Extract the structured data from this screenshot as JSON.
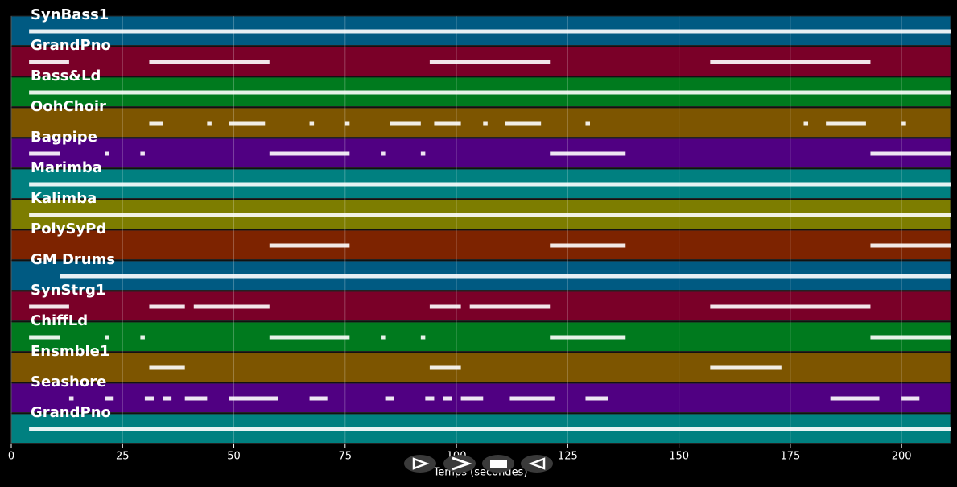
{
  "chart_data": {
    "type": "timeline",
    "xlabel": "Temps (secondes)",
    "xlim": [
      0,
      211
    ],
    "xticks": [
      0,
      25,
      50,
      75,
      100,
      125,
      150,
      175,
      200
    ],
    "grid": true,
    "series": [
      {
        "name": "SynBass1",
        "color": "#005a82",
        "segments": [
          [
            4,
            211
          ]
        ]
      },
      {
        "name": "GrandPno",
        "color": "#7a0028",
        "segments": [
          [
            4,
            13
          ],
          [
            31,
            58
          ],
          [
            94,
            121
          ],
          [
            157,
            193
          ]
        ]
      },
      {
        "name": "Bass&Ld",
        "color": "#007a1e",
        "segments": [
          [
            4,
            211
          ]
        ]
      },
      {
        "name": "OohChoir",
        "color": "#7d5500",
        "segments": [
          [
            31,
            34
          ],
          [
            44,
            45
          ],
          [
            49,
            57
          ],
          [
            67,
            68
          ],
          [
            75,
            76
          ],
          [
            85,
            92
          ],
          [
            95,
            101
          ],
          [
            106,
            107
          ],
          [
            111,
            119
          ],
          [
            129,
            130
          ],
          [
            178,
            179
          ],
          [
            183,
            192
          ],
          [
            200,
            201
          ]
        ]
      },
      {
        "name": "Bagpipe",
        "color": "#500082",
        "segments": [
          [
            4,
            11
          ],
          [
            21,
            22
          ],
          [
            29,
            30
          ],
          [
            58,
            76
          ],
          [
            83,
            84
          ],
          [
            92,
            93
          ],
          [
            121,
            138
          ],
          [
            193,
            211
          ]
        ]
      },
      {
        "name": "Marimba",
        "color": "#008080",
        "segments": [
          [
            4,
            211
          ]
        ]
      },
      {
        "name": "Kalimba",
        "color": "#7d7d00",
        "segments": [
          [
            4,
            211
          ]
        ]
      },
      {
        "name": "PolySyPd",
        "color": "#7d2300",
        "segments": [
          [
            58,
            76
          ],
          [
            121,
            138
          ],
          [
            193,
            211
          ]
        ]
      },
      {
        "name": "GM Drums",
        "color": "#005a82",
        "segments": [
          [
            11,
            211
          ]
        ]
      },
      {
        "name": "SynStrg1",
        "color": "#7a0028",
        "segments": [
          [
            4,
            13
          ],
          [
            31,
            39
          ],
          [
            41,
            58
          ],
          [
            94,
            101
          ],
          [
            103,
            121
          ],
          [
            157,
            175
          ],
          [
            175,
            193
          ]
        ]
      },
      {
        "name": "ChiffLd",
        "color": "#007a1e",
        "segments": [
          [
            4,
            11
          ],
          [
            21,
            22
          ],
          [
            29,
            30
          ],
          [
            58,
            76
          ],
          [
            83,
            84
          ],
          [
            92,
            93
          ],
          [
            121,
            138
          ],
          [
            193,
            211
          ]
        ]
      },
      {
        "name": "Ensmble1",
        "color": "#7d5500",
        "segments": [
          [
            31,
            39
          ],
          [
            94,
            101
          ],
          [
            157,
            173
          ]
        ]
      },
      {
        "name": "Seashore",
        "color": "#500082",
        "segments": [
          [
            13,
            14
          ],
          [
            21,
            23
          ],
          [
            30,
            32
          ],
          [
            34,
            36
          ],
          [
            39,
            44
          ],
          [
            49,
            60
          ],
          [
            67,
            71
          ],
          [
            84,
            86
          ],
          [
            93,
            95
          ],
          [
            97,
            99
          ],
          [
            101,
            106
          ],
          [
            112,
            122
          ],
          [
            129,
            134
          ],
          [
            184,
            195
          ],
          [
            200,
            204
          ]
        ]
      },
      {
        "name": "GrandPno",
        "color": "#008080",
        "segments": [
          [
            4,
            211
          ]
        ]
      }
    ]
  }
}
